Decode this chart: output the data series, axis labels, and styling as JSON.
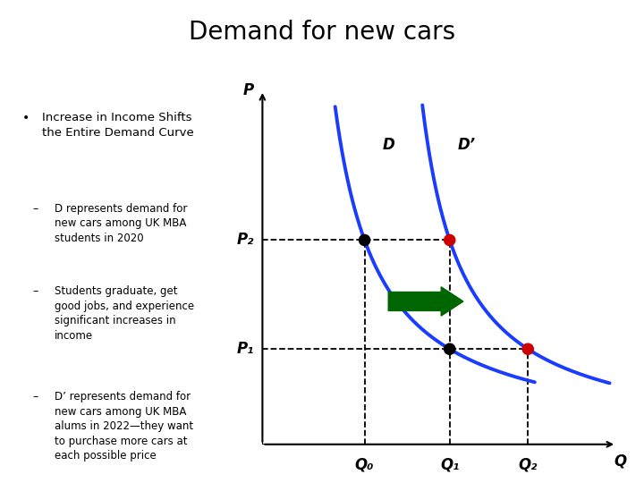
{
  "title": "Demand for new cars",
  "title_fontsize": 20,
  "title_fontweight": "normal",
  "bg_color": "#ffffff",
  "bullet_text": "Increase in Income Shifts\nthe Entire Demand Curve",
  "sub_bullets": [
    "D represents demand for\nnew cars among UK MBA\nstudents in 2020",
    "Students graduate, get\ngood jobs, and experience\nsignificant increases in\nincome",
    "D’ represents demand for\nnew cars among UK MBA\nalums in 2022—they want\nto purchase more cars at\neach possible price"
  ],
  "curve_color": "#1a3cff",
  "curve_lw": 2.8,
  "dashed_color": "#000000",
  "dot_color_black": "#000000",
  "dot_color_red": "#cc0000",
  "arrow_color": "#006600",
  "P_label": "P",
  "Q_label": "Q",
  "D_label": "D",
  "Dprime_label": "D’",
  "P1_label": "P₁",
  "P2_label": "P₂",
  "Q0_label": "Q₀",
  "Q1_label": "Q₁",
  "Q2_label": "Q₂",
  "Q0": 0.3,
  "Q1": 0.55,
  "Q2": 0.78,
  "P1": 0.28,
  "P2": 0.6,
  "xlim": [
    0,
    1.05
  ],
  "ylim": [
    0,
    1.05
  ]
}
